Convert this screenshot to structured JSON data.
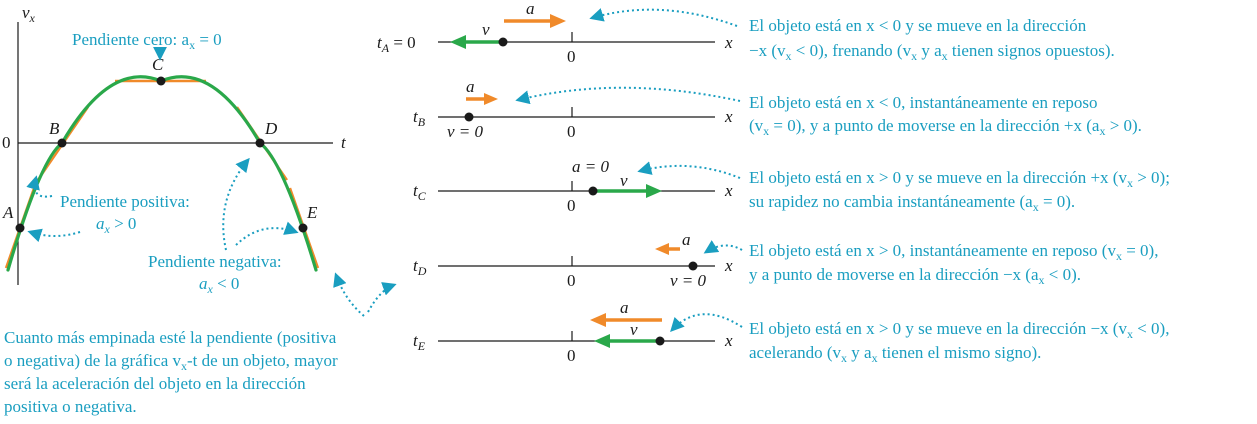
{
  "graph": {
    "y_axis_label": "v",
    "y_axis_sub": "x",
    "x_axis_label": "t",
    "zero_label": "0",
    "points": [
      "A",
      "B",
      "C",
      "D",
      "E"
    ],
    "slope_zero": {
      "line1": "Pendiente cero: a",
      "sub": "x",
      "tail": " = 0"
    },
    "slope_pos": {
      "line1": "Pendiente positiva:",
      "line2a": "a",
      "sub": "x",
      "line2b": " > 0"
    },
    "slope_neg": {
      "line1": "Pendiente negativa:",
      "line2a": "a",
      "sub": "x",
      "line2b": " < 0"
    }
  },
  "note": {
    "line1": "Cuanto más empinada esté la pendiente (positiva",
    "line2": "o negativa) de la gráfica v",
    "line2_sub": "x",
    "line2_tail": "-t de un objeto, mayor",
    "line3": "será la aceleración del objeto en la dirección",
    "line4": "positiva o negativa."
  },
  "rows": [
    {
      "t": "t",
      "t_sub": "A",
      "eq": "= 0",
      "axis_x": "x",
      "zero": "0",
      "v": "v",
      "a": "a",
      "extra": "",
      "desc1": "El objeto está en x < 0 y se mueve en la dirección",
      "desc2": "−x (v",
      "desc2_sub": "x",
      "desc2_tail": " < 0), frenando (v",
      "desc2_sub2": "x",
      "desc2_tail2": " y a",
      "desc2_sub3": "x",
      "desc2_tail3": " tienen signos opuestos)."
    },
    {
      "t": "t",
      "t_sub": "B",
      "eq": "",
      "axis_x": "x",
      "zero": "0",
      "v": "v = 0",
      "a": "a",
      "extra": "",
      "desc1": "El objeto está en x < 0, instantáneamente en reposo",
      "desc2": "(v",
      "desc2_sub": "x",
      "desc2_tail": " = 0), y a punto de moverse en la dirección +x (a",
      "desc2_sub2": "x",
      "desc2_tail2": " > 0)."
    },
    {
      "t": "t",
      "t_sub": "C",
      "eq": "",
      "axis_x": "x",
      "zero": "0",
      "v": "v",
      "a": "a = 0",
      "extra": "",
      "desc1": "El objeto está en x > 0 y se mueve en la dirección +x (v",
      "desc1_sub": "x",
      "desc1_tail": " > 0);",
      "desc2": "su rapidez no cambia instantáneamente (a",
      "desc2_sub": "x",
      "desc2_tail": " = 0)."
    },
    {
      "t": "t",
      "t_sub": "D",
      "eq": "",
      "axis_x": "x",
      "zero": "0",
      "v": "v = 0",
      "a": "a",
      "extra": "",
      "desc1": "El objeto está en x > 0, instantáneamente en reposo (v",
      "desc1_sub": "x",
      "desc1_tail": " = 0),",
      "desc2": "y a punto de moverse en la dirección −x (a",
      "desc2_sub": "x",
      "desc2_tail": " < 0)."
    },
    {
      "t": "t",
      "t_sub": "E",
      "eq": "",
      "axis_x": "x",
      "zero": "0",
      "v": "v",
      "a": "a",
      "extra": "",
      "desc1": "El objeto está en x > 0 y se mueve en la dirección −x (v",
      "desc1_sub": "x",
      "desc1_tail": " < 0),",
      "desc2": "acelerando (v",
      "desc2_sub": "x",
      "desc2_tail": " y a",
      "desc2_sub2": "x",
      "desc2_tail2": " tienen el mismo signo)."
    }
  ],
  "colors": {
    "velocity": "#2aa84a",
    "acceleration": "#f08a2a",
    "annotation": "#1a9ec0",
    "axis": "#1a1a1a"
  }
}
